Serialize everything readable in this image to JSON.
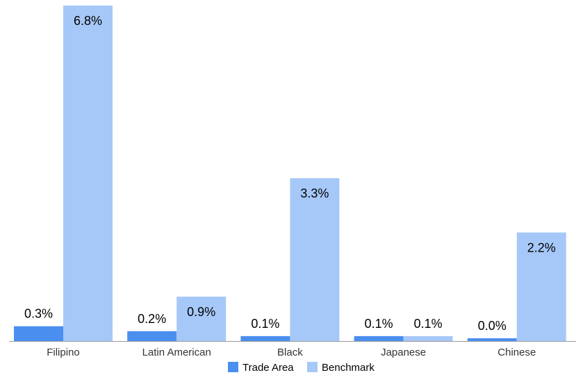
{
  "chart_data": {
    "type": "bar",
    "categories": [
      "Filipino",
      "Latin American",
      "Black",
      "Japanese",
      "Chinese"
    ],
    "series": [
      {
        "name": "Trade Area",
        "values": [
          0.3,
          0.2,
          0.1,
          0.1,
          0.0
        ],
        "labels": [
          "0.3%",
          "0.2%",
          "0.1%",
          "0.1%",
          "0.0%"
        ],
        "color": "#4a8ff0"
      },
      {
        "name": "Benchmark",
        "values": [
          6.8,
          0.9,
          3.3,
          0.1,
          2.2
        ],
        "labels": [
          "6.8%",
          "0.9%",
          "3.3%",
          "0.1%",
          "2.2%"
        ],
        "color": "#a6c8f8"
      }
    ],
    "title": "",
    "xlabel": "",
    "ylabel": "",
    "ylim": [
      0,
      6.8
    ],
    "grid": false,
    "legend_position": "bottom",
    "axis_color": "#999999"
  }
}
